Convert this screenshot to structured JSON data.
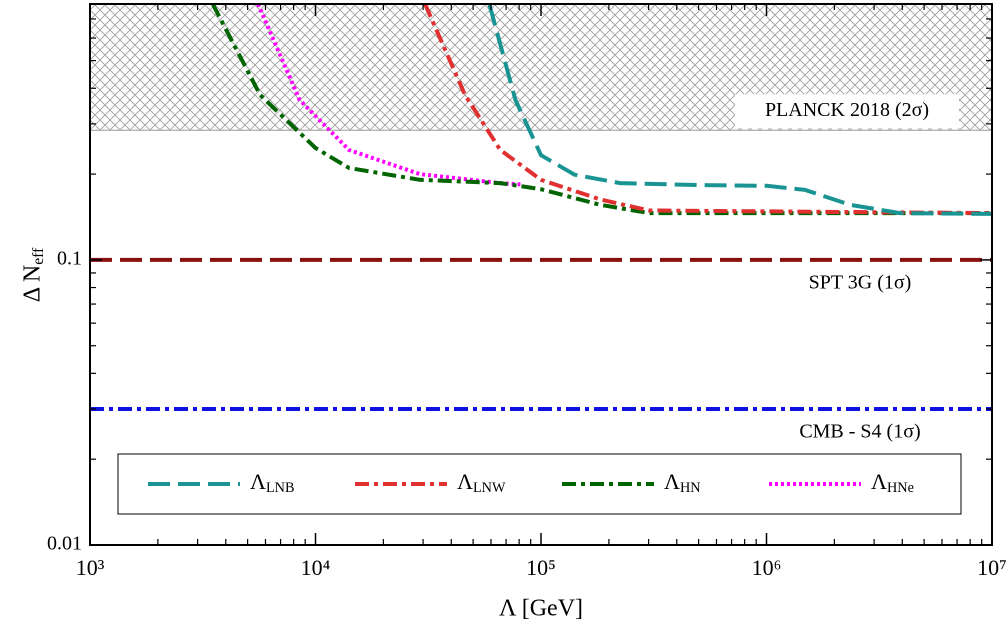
{
  "chart_data": {
    "type": "line",
    "xlabel": "Λ [GeV]",
    "ylabel": "Δ Neff",
    "xscale": "log",
    "yscale": "log",
    "xlim": [
      1000,
      10000000
    ],
    "ylim": [
      0.01,
      0.79
    ],
    "xticks": [
      {
        "value": 1000,
        "label": "10³"
      },
      {
        "value": 10000,
        "label": "10⁴"
      },
      {
        "value": 100000,
        "label": "10⁵"
      },
      {
        "value": 1000000,
        "label": "10⁶"
      },
      {
        "value": 10000000,
        "label": "10⁷"
      }
    ],
    "xminor": [
      2000,
      3000,
      4000,
      5000,
      6000,
      7000,
      8000,
      9000,
      20000,
      30000,
      40000,
      50000,
      60000,
      70000,
      80000,
      90000,
      200000,
      300000,
      400000,
      500000,
      600000,
      700000,
      800000,
      900000,
      2000000,
      3000000,
      4000000,
      5000000,
      6000000,
      7000000,
      8000000,
      9000000
    ],
    "yticks": [
      0.01,
      0.1
    ],
    "yminor": [
      0.02,
      0.03,
      0.04,
      0.05,
      0.06,
      0.07,
      0.08,
      0.09,
      0.2,
      0.3,
      0.4,
      0.5,
      0.6,
      0.7
    ],
    "bounds": [
      {
        "name": "PLANCK 2018 (2σ)",
        "value": 0.285,
        "color": "#999999",
        "style": "hatch"
      },
      {
        "name": "SPT 3G (1σ)",
        "value": 0.1,
        "color": "#8b1010",
        "style": "dashed"
      },
      {
        "name": "CMB - S4 (1σ)",
        "value": 0.03,
        "color": "#1010e0",
        "style": "dashdot"
      }
    ],
    "series": [
      {
        "name": "ΛLNB",
        "color": "#1a9393",
        "style": "dashed",
        "x": [
          59000,
          77000,
          100000,
          141000,
          224000,
          507000,
          1000000,
          1480000,
          2350000,
          3900000,
          10000000
        ],
        "values": [
          0.79,
          0.364,
          0.233,
          0.199,
          0.186,
          0.183,
          0.182,
          0.176,
          0.156,
          0.146,
          0.145
        ]
      },
      {
        "name": "ΛLNW",
        "color": "#e03030",
        "style": "dashdot",
        "x": [
          30600,
          46000,
          66000,
          100000,
          183000,
          302000,
          10000000
        ],
        "values": [
          0.79,
          0.379,
          0.243,
          0.191,
          0.163,
          0.149,
          0.146
        ]
      },
      {
        "name": "ΛHN",
        "color": "#006400",
        "style": "dashdot",
        "x": [
          3500,
          5680,
          10000,
          14100,
          29000,
          66000,
          100000,
          183000,
          302000,
          10000000
        ],
        "values": [
          0.79,
          0.379,
          0.247,
          0.21,
          0.191,
          0.186,
          0.177,
          0.156,
          0.146,
          0.146
        ]
      },
      {
        "name": "ΛHNe",
        "color": "#ff00ff",
        "style": "dotted",
        "x": [
          5560,
          8500,
          14100,
          29000,
          66000,
          81000
        ],
        "values": [
          0.79,
          0.364,
          0.243,
          0.2,
          0.186,
          0.184
        ]
      }
    ]
  }
}
